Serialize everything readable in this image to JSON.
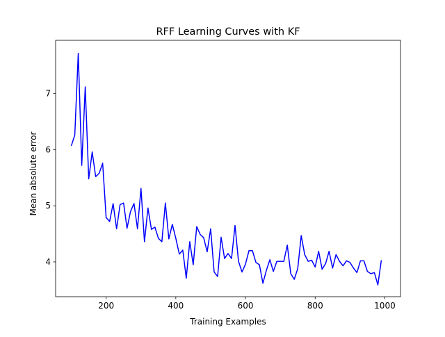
{
  "chart_data": {
    "type": "line",
    "title": "RFF Learning Curves with KF",
    "xlabel": "Training Examples",
    "ylabel": "Mean absolute error",
    "xlim": [
      55,
      1045
    ],
    "ylim": [
      3.38,
      7.95
    ],
    "xticks": [
      200,
      400,
      600,
      800,
      1000
    ],
    "yticks": [
      4,
      5,
      6,
      7
    ],
    "grid": false,
    "line_color": "#0000ff",
    "series": [
      {
        "x": [
          100,
          110,
          120,
          130,
          140,
          150,
          160,
          170,
          180,
          190,
          200,
          210,
          220,
          230,
          240,
          250,
          260,
          270,
          280,
          290,
          300,
          310,
          320,
          330,
          340,
          350,
          360,
          370,
          380,
          390,
          400,
          410,
          420,
          430,
          440,
          450,
          460,
          470,
          480,
          490,
          500,
          510,
          520,
          530,
          540,
          550,
          560,
          570,
          580,
          590,
          600,
          610,
          620,
          630,
          640,
          650,
          660,
          670,
          680,
          690,
          700,
          710,
          720,
          730,
          740,
          750,
          760,
          770,
          780,
          790,
          800,
          810,
          820,
          830,
          840,
          850,
          860,
          870,
          880,
          890,
          900,
          910,
          920,
          930,
          940,
          950,
          960,
          970,
          980,
          990
        ],
        "values": [
          6.07,
          6.26,
          7.72,
          5.72,
          7.12,
          5.48,
          5.96,
          5.52,
          5.58,
          5.76,
          4.79,
          4.72,
          5.04,
          4.59,
          5.02,
          5.05,
          4.6,
          4.9,
          5.04,
          4.59,
          5.31,
          4.36,
          4.96,
          4.58,
          4.62,
          4.42,
          4.36,
          5.05,
          4.41,
          4.67,
          4.42,
          4.14,
          4.21,
          3.71,
          4.36,
          3.95,
          4.63,
          4.49,
          4.43,
          4.18,
          4.59,
          3.82,
          3.74,
          4.44,
          4.06,
          4.15,
          4.06,
          4.65,
          4.01,
          3.82,
          3.96,
          4.2,
          4.2,
          3.99,
          3.95,
          3.62,
          3.85,
          4.04,
          3.83,
          4.01,
          4.01,
          4.01,
          4.3,
          3.79,
          3.69,
          3.88,
          4.47,
          4.13,
          4.01,
          4.03,
          3.91,
          4.19,
          3.87,
          3.97,
          4.19,
          3.89,
          4.13,
          4.01,
          3.93,
          4.02,
          3.99,
          3.89,
          3.81,
          4.02,
          4.02,
          3.83,
          3.79,
          3.81,
          3.59,
          4.03
        ]
      }
    ]
  }
}
